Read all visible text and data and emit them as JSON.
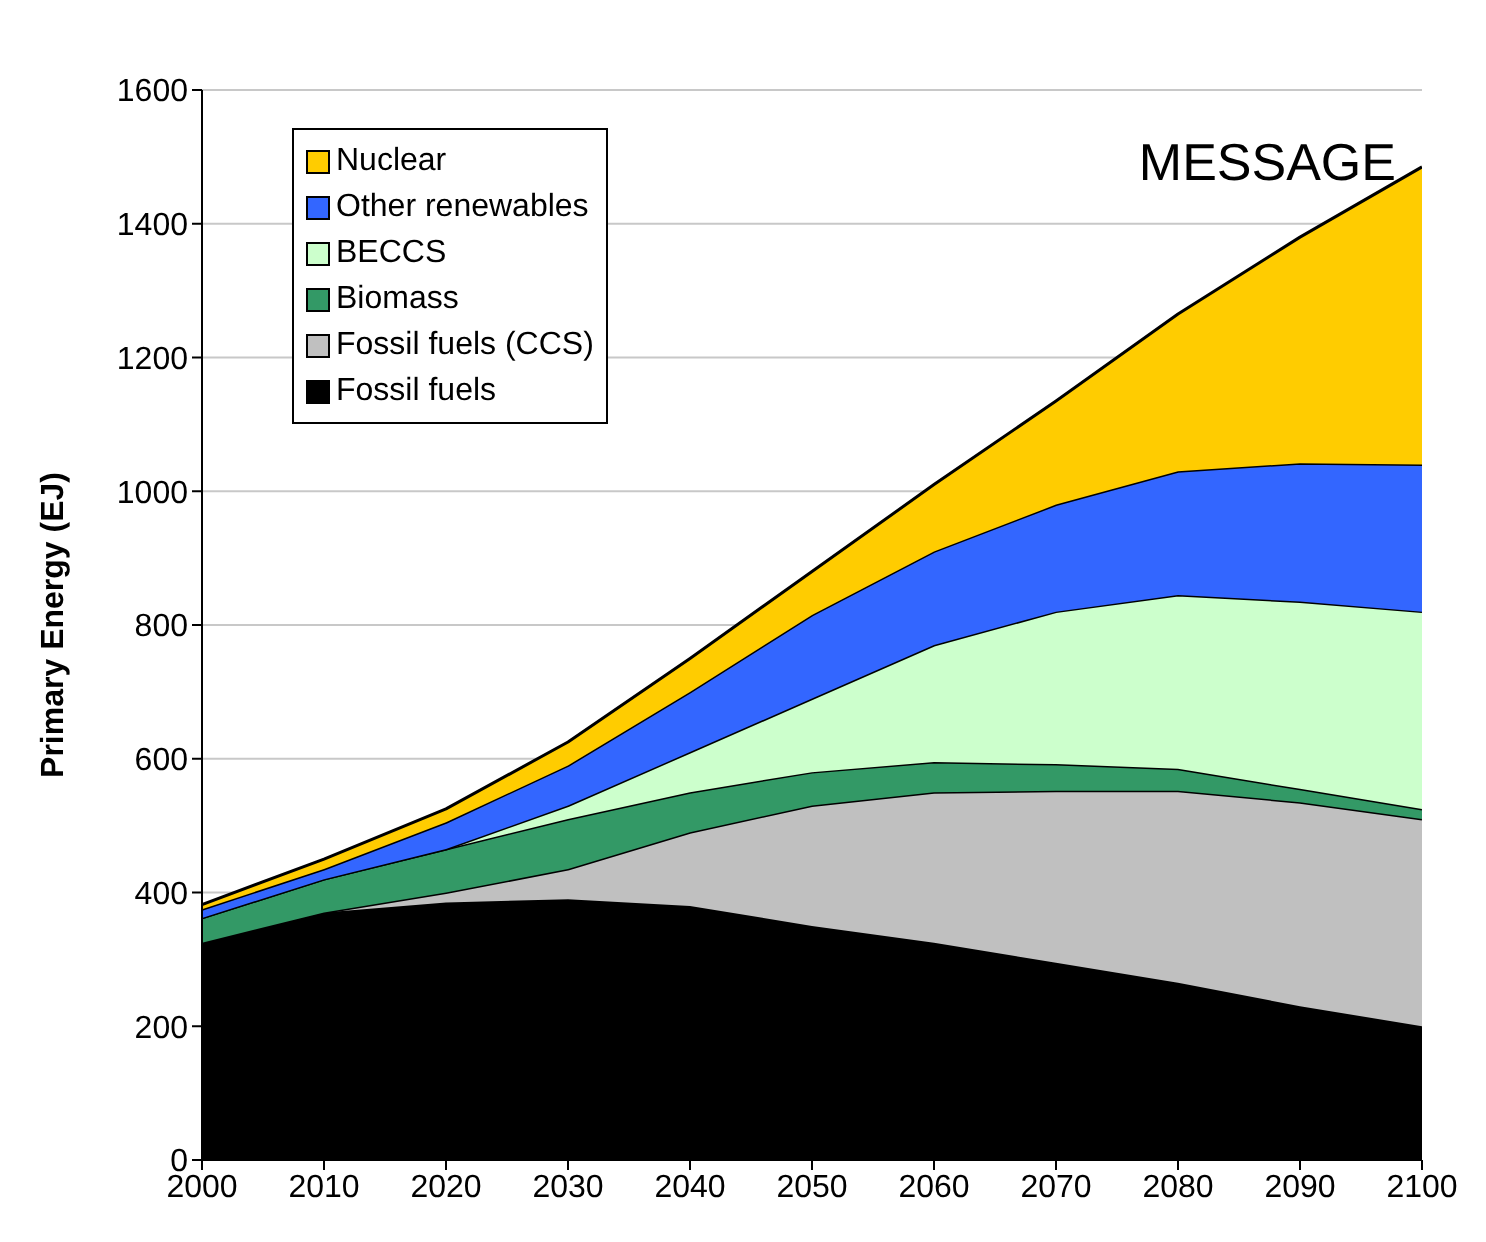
{
  "chart_data": {
    "type": "area",
    "stacked": true,
    "ylabel": "Primary Energy (EJ)",
    "x": [
      2000,
      2010,
      2020,
      2030,
      2040,
      2050,
      2060,
      2070,
      2080,
      2090,
      2100
    ],
    "xlim": [
      2000,
      2100
    ],
    "xticks": [
      2000,
      2010,
      2020,
      2030,
      2040,
      2050,
      2060,
      2070,
      2080,
      2090,
      2100
    ],
    "ylim": [
      0,
      1600
    ],
    "yticks": [
      0,
      200,
      400,
      600,
      800,
      1000,
      1200,
      1400,
      1600
    ],
    "grid": "y",
    "legend": "top left",
    "annotations": [
      "MESSAGE"
    ],
    "series": [
      {
        "name": "Fossil fuels",
        "color": "#000000",
        "values": [
          325,
          370,
          385,
          390,
          380,
          350,
          325,
          295,
          265,
          230,
          200
        ]
      },
      {
        "name": "Fossil fuels (CCS)",
        "color": "#c0c0c0",
        "values": [
          0,
          0,
          15,
          45,
          110,
          180,
          225,
          257,
          287,
          305,
          310
        ]
      },
      {
        "name": "Biomass",
        "color": "#339966",
        "values": [
          37,
          50,
          65,
          75,
          60,
          50,
          45,
          40,
          33,
          20,
          15
        ]
      },
      {
        "name": "BECCS",
        "color": "#ccffcc",
        "values": [
          0,
          0,
          0,
          20,
          60,
          110,
          175,
          228,
          260,
          280,
          295
        ]
      },
      {
        "name": "Other renewables",
        "color": "#3366ff",
        "values": [
          13,
          15,
          40,
          60,
          90,
          125,
          140,
          160,
          185,
          207,
          220
        ]
      },
      {
        "name": "Nuclear",
        "color": "#ffcc00",
        "values": [
          7,
          15,
          20,
          35,
          50,
          65,
          100,
          155,
          235,
          338,
          445
        ]
      }
    ]
  }
}
